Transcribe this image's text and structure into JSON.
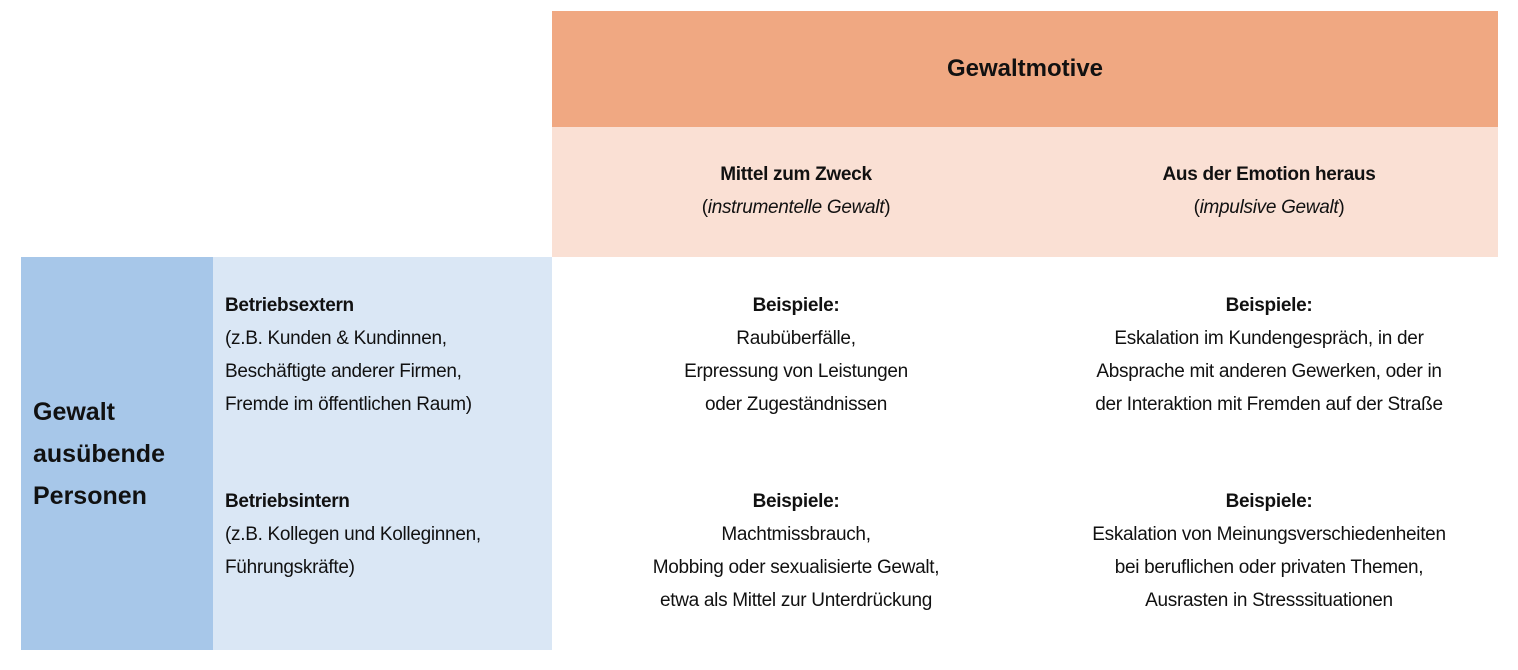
{
  "colors": {
    "header": "#f0a882",
    "subheader": "#fae0d4",
    "row_header_dark": "#a7c7e9",
    "row_header_light": "#dae7f5"
  },
  "header": {
    "title": "Gewaltmotive"
  },
  "columns": [
    {
      "title": "Mittel zum Zweck",
      "open": "(",
      "subtitle": "instrumentelle Gewalt",
      "close": ")"
    },
    {
      "title": "Aus der Emotion heraus",
      "open": "(",
      "subtitle": "impulsive Gewalt",
      "close": ")"
    }
  ],
  "row_group": {
    "lines": [
      "Gewalt",
      "ausübende",
      "Personen"
    ]
  },
  "rows": [
    {
      "title": "Betriebsextern",
      "lines": [
        "(z.B. Kunden & Kundinnen,",
        "Beschäftigte anderer Firmen,",
        "Fremde im öffentlichen Raum)"
      ],
      "cells": [
        {
          "label": "Beispiele:",
          "lines": [
            "Raubüberfälle,",
            "Erpressung von Leistungen",
            "oder Zugeständnissen"
          ]
        },
        {
          "label": "Beispiele:",
          "lines": [
            "Eskalation im Kundengespräch, in der",
            "Absprache mit anderen Gewerken, oder in",
            "der Interaktion mit Fremden auf der Straße"
          ]
        }
      ]
    },
    {
      "title": "Betriebsintern",
      "lines": [
        "(z.B. Kollegen und Kolleginnen,",
        "Führungskräfte)"
      ],
      "cells": [
        {
          "label": "Beispiele:",
          "lines": [
            "Machtmissbrauch,",
            "Mobbing oder sexualisierte Gewalt,",
            "etwa als Mittel zur Unterdrückung"
          ]
        },
        {
          "label": "Beispiele:",
          "lines": [
            "Eskalation von Meinungsverschiedenheiten",
            "bei beruflichen oder privaten Themen,",
            "Ausrasten in Stresssituationen"
          ]
        }
      ]
    }
  ]
}
